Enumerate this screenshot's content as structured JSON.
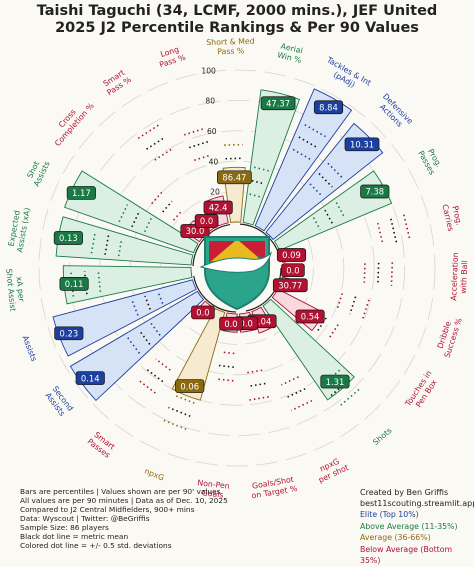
{
  "title_line1": "Taishi Taguchi (34, LCMF, 2000 mins.), JEF United",
  "title_line2": "2025 J2 Percentile Rankings & Per 90 Values",
  "colors": {
    "elite": "#1d3f9e",
    "above": "#1a7a45",
    "average": "#8a6a10",
    "below": "#b01232",
    "elite_fill": "#d6e2f5",
    "above_fill": "#dcefe3",
    "average_fill": "#f6ead0",
    "below_fill": "#f9d9df",
    "background": "#fbf9f4"
  },
  "chart_data": {
    "type": "polar_bar",
    "radial_ticks": [
      "0",
      "20",
      "40",
      "60",
      "80",
      "100"
    ],
    "metrics": [
      {
        "label": "Aerial\nWin %",
        "percentile": 88,
        "value": "47.37",
        "tier": "above"
      },
      {
        "label": "Tackles & Int\n(pAdj)",
        "percentile": 98,
        "value": "8.84",
        "tier": "elite"
      },
      {
        "label": "Defensive\nActions",
        "percentile": 92,
        "value": "10.31",
        "tier": "elite"
      },
      {
        "label": "Prog.\nPasses",
        "percentile": 80,
        "value": "7.38",
        "tier": "above"
      },
      {
        "label": "Prog.\nCarries",
        "percentile": 2,
        "value": "0.09",
        "tier": "below"
      },
      {
        "label": "Acceleration\nwith Ball",
        "percentile": 3,
        "value": "0.0",
        "tier": "below"
      },
      {
        "label": "Dribble\nSuccess %",
        "percentile": 5,
        "value": "30.77",
        "tier": "below"
      },
      {
        "label": "Touches in\nPen Box",
        "percentile": 34,
        "value": "0.54",
        "tier": "below"
      },
      {
        "label": "Shots",
        "percentile": 75,
        "value": "1.31",
        "tier": "above"
      },
      {
        "label": "npxG\nper shot",
        "percentile": 15,
        "value": "0.04",
        "tier": "below"
      },
      {
        "label": "Goals/Shot\non Target %",
        "percentile": 12,
        "value": "0.0",
        "tier": "below"
      },
      {
        "label": "Non-Pen\nGoals",
        "percentile": 12,
        "value": "0.0",
        "tier": "below"
      },
      {
        "label": "npxG",
        "percentile": 60,
        "value": "0.06",
        "tier": "average"
      },
      {
        "label": "Smart\nPasses",
        "percentile": 5,
        "value": "0.0",
        "tier": "below"
      },
      {
        "label": "Second\nAssists",
        "percentile": 97,
        "value": "0.14",
        "tier": "elite"
      },
      {
        "label": "Assists",
        "percentile": 95,
        "value": "0.23",
        "tier": "elite"
      },
      {
        "label": "xA per\nShot Assist",
        "percentile": 84,
        "value": "0.11",
        "tier": "above"
      },
      {
        "label": "Expected\nAssists (xA)",
        "percentile": 89,
        "value": "0.13",
        "tier": "above"
      },
      {
        "label": "Shot\nAssists",
        "percentile": 90,
        "value": "1.17",
        "tier": "above"
      },
      {
        "label": "Cross\nCompletion %",
        "percentile": 12,
        "value": "30.0",
        "tier": "below"
      },
      {
        "label": "Smart\nPass %",
        "percentile": 6,
        "value": "0.0",
        "tier": "below"
      },
      {
        "label": "Long\nPass %",
        "percentile": 18,
        "value": "42.4",
        "tier": "below"
      },
      {
        "label": "Short & Med\nPass %",
        "percentile": 36,
        "value": "86.47",
        "tier": "average"
      }
    ]
  },
  "footer": [
    "Bars are percentiles | Values shown are per 90' values",
    "All values are per 90 minutes | Data as of Dec. 10, 2025",
    "Compared to J2 Central Midfielders, 900+ mins",
    "Data: Wyscout | Twitter: @BeGriffis",
    "Sample Size: 86 players",
    "Black dot line = metric mean",
    "Colored dot line = +/- 0.5 std. deviations"
  ],
  "credit": [
    "Created by Ben Griffis",
    "best11scouting.streamlit.app"
  ],
  "legend": [
    {
      "text": "Elite (Top 10%)",
      "tier": "elite"
    },
    {
      "text": "Above Average (11-35%)",
      "tier": "above"
    },
    {
      "text": "Average (36-66%)",
      "tier": "average"
    },
    {
      "text": "Below Average (Bottom 35%)",
      "tier": "below"
    }
  ]
}
